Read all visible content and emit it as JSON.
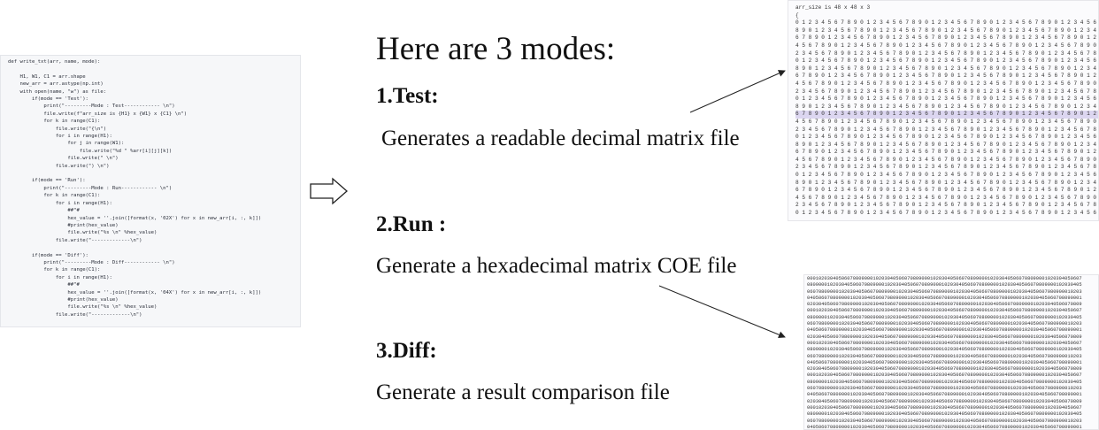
{
  "code": {
    "blocks": [
      [
        "def write_txt(arr, name, mode):"
      ],
      [
        "    H1, W1, C1 = arr.shape",
        "    new_arr = arr.astype(np.int)",
        "    with open(name, \"w\") as file:",
        "        if(mode == 'Test'):",
        "            print(\"---------Mode : Test------------ \\n\")",
        "            file.write(f\"arr_size is {H1} x {W1} x {C1} \\n\")",
        "            for k in range(C1):",
        "                file.write(\"{\\n\")",
        "                for i in range(H1):",
        "                    for j in range(W1):",
        "                        file.write(\"%d \" %arr[i][j][k])",
        "                    file.write(\" \\n\")",
        "                file.write(\") \\n\")"
      ],
      [
        "        if(mode == 'Run'):",
        "            print(\"---------Mode : Run------------ \\n\")",
        "            for k in range(C1):",
        "                for i in range(H1):",
        "                    ##\"#",
        "                    hex_value = ''.join([format(x, '02X') for x in new_arr[i, :, k]])",
        "                    #print(hex_value)",
        "                    file.write(\"%s \\n\" %hex_value)",
        "                file.write(\"-------------\\n\")"
      ],
      [
        "        if(mode == 'Diff'):",
        "            print(\"---------Mode : Diff------------ \\n\")",
        "            for k in range(C1):",
        "                for i in range(H1):",
        "                    ##\"#",
        "                    hex_value = ''.join([format(x, '04X') for x in new_arr[i, :, k]])",
        "                    #print(hex_value)",
        "                    file.write(\"%s \\n\" %hex_value)",
        "                file.write(\"-------------\\n\")"
      ]
    ]
  },
  "slide": {
    "title": "Here are 3 modes:",
    "modes": [
      {
        "heading": "1.Test:",
        "description": "Generates a readable decimal matrix file"
      },
      {
        "heading": "2.Run :",
        "description": "Generate a hexadecimal matrix COE file"
      },
      {
        "heading": "3.Diff:",
        "description": "Generate a result comparison file"
      }
    ]
  },
  "decimal_file": {
    "header": "arr_size is 48 x 48 x 3",
    "brace": "{",
    "rows": [
      "0 1 2 3 4 5 6 7 8 9 0 1 2 3 4 5 6 7 8 9 0 1 2 3 4 5 6 7 8 9 0 1 2 3 4 5 6 7 8 9 0 1 2 3 4 5 6 7",
      "8 9 0 1 2 3 4 5 6 7 8 9 0 1 2 3 4 5 6 7 8 9 0 1 2 3 4 5 6 7 8 9 0 1 2 3 4 5 6 7 8 9 0 1 2 3 4 5",
      "6 7 8 9 0 1 2 3 4 5 6 7 8 9 0 1 2 3 4 5 6 7 8 9 0 1 2 3 4 5 6 7 8 9 0 1 2 3 4 5 6 7 8 9 0 1 2 3",
      "4 5 6 7 8 9 0 1 2 3 4 5 6 7 8 9 0 1 2 3 4 5 6 7 8 9 0 1 2 3 4 5 6 7 8 9 0 1 2 3 4 5 6 7 8 9 0 1",
      "2 3 4 5 6 7 8 9 0 1 2 3 4 5 6 7 8 9 0 1 2 3 4 5 6 7 8 9 0 1 2 3 4 5 6 7 8 9 0 1 2 3 4 5 6 7 8 9",
      "0 1 2 3 4 5 6 7 8 9 0 1 2 3 4 5 6 7 8 9 0 1 2 3 4 5 6 7 8 9 0 1 2 3 4 5 6 7 8 9 0 1 2 3 4 5 6 7",
      "8 9 0 1 2 3 4 5 6 7 8 9 0 1 2 3 4 5 6 7 8 9 0 1 2 3 4 5 6 7 8 9 0 1 2 3 4 5 6 7 8 9 0 1 2 3 4 5",
      "6 7 8 9 0 1 2 3 4 5 6 7 8 9 0 1 2 3 4 5 6 7 8 9 0 1 2 3 4 5 6 7 8 9 0 1 2 3 4 5 6 7 8 9 0 1 2 3",
      "4 5 6 7 8 9 0 1 2 3 4 5 6 7 8 9 0 1 2 3 4 5 6 7 8 9 0 1 2 3 4 5 6 7 8 9 0 1 2 3 4 5 6 7 8 9 0 1",
      "2 3 4 5 6 7 8 9 0 1 2 3 4 5 6 7 8 9 0 1 2 3 4 5 6 7 8 9 0 1 2 3 4 5 6 7 8 9 0 1 2 3 4 5 6 7 8 9",
      "0 1 2 3 4 5 6 7 8 9 0 1 2 3 4 5 6 7 8 9 0 1 2 3 4 5 6 7 8 9 0 1 2 3 4 5 6 7 8 9 0 1 2 3 4 5 6 7",
      "8 9 0 1 2 3 4 5 6 7 8 9 0 1 2 3 4 5 6 7 8 9 0 1 2 3 4 5 6 7 8 9 0 1 2 3 4 5 6 7 8 9 0 1 2 3 4 5",
      "6 7 8 9 0 1 2 3 4 5 6 7 8 9 0 1 2 3 4 5 6 7 8 9 0 1 2 3 4 5 6 7 8 9 0 1 2 3 4 5 6 7 8 9 0 1 2 3",
      "4 5 6 7 8 9 0 1 2 3 4 5 6 7 8 9 0 1 2 3 4 5 6 7 8 9 0 1 2 3 4 5 6 7 8 9 0 1 2 3 4 5 6 7 8 9 0 1",
      "2 3 4 5 6 7 8 9 0 1 2 3 4 5 6 7 8 9 0 1 2 3 4 5 6 7 8 9 0 1 2 3 4 5 6 7 8 9 0 1 2 3 4 5 6 7 8 9",
      "0 1 2 3 4 5 6 7 8 9 0 1 2 3 4 5 6 7 8 9 0 1 2 3 4 5 6 7 8 9 0 1 2 3 4 5 6 7 8 9 0 1 2 3 4 5 6 7",
      "8 9 0 1 2 3 4 5 6 7 8 9 0 1 2 3 4 5 6 7 8 9 0 1 2 3 4 5 6 7 8 9 0 1 2 3 4 5 6 7 8 9 0 1 2 3 4 5",
      "6 7 8 9 0 1 2 3 4 5 6 7 8 9 0 1 2 3 4 5 6 7 8 9 0 1 2 3 4 5 6 7 8 9 0 1 2 3 4 5 6 7 8 9 0 1 2 3",
      "4 5 6 7 8 9 0 1 2 3 4 5 6 7 8 9 0 1 2 3 4 5 6 7 8 9 0 1 2 3 4 5 6 7 8 9 0 1 2 3 4 5 6 7 8 9 0 1",
      "2 3 4 5 6 7 8 9 0 1 2 3 4 5 6 7 8 9 0 1 2 3 4 5 6 7 8 9 0 1 2 3 4 5 6 7 8 9 0 1 2 3 4 5 6 7 8 9",
      "0 1 2 3 4 5 6 7 8 9 0 1 2 3 4 5 6 7 8 9 0 1 2 3 4 5 6 7 8 9 0 1 2 3 4 5 6 7 8 9 0 1 2 3 4 5 6 7",
      "8 9 0 1 2 3 4 5 6 7 8 9 0 1 2 3 4 5 6 7 8 9 0 1 2 3 4 5 6 7 8 9 0 1 2 3 4 5 6 7 8 9 0 1 2 3 4 5",
      "6 7 8 9 0 1 2 3 4 5 6 7 8 9 0 1 2 3 4 5 6 7 8 9 0 1 2 3 4 5 6 7 8 9 0 1 2 3 4 5 6 7 8 9 0 1 2 3",
      "4 5 6 7 8 9 0 1 2 3 4 5 6 7 8 9 0 1 2 3 4 5 6 7 8 9 0 1 2 3 4 5 6 7 8 9 0 1 2 3 4 5 6 7 8 9 0 1",
      "2 3 4 5 6 7 8 9 0 1 2 3 4 5 6 7 8 9 0 1 2 3 4 5 6 7 8 9 0 1 2 3 4 5 6 7 8 9 0 1 2 3 4 5 6 7 8 9",
      "0 1 2 3 4 5 6 7 8 9 0 1 2 3 4 5 6 7 8 9 0 1 2 3 4 5 6 7 8 9 0 1 2 3 4 5 6 7 8 9 0 1 2 3 4 5 6 7"
    ]
  },
  "hex_file": {
    "rows": [
      "000102030405060708090001020304050607080900010203040506070809000102030405060708090001020304050607",
      "080900010203040506070809000102030405060708090001020304050607080900010203040506070809000102030405",
      "060708090001020304050607080900010203040506070809000102030405060708090001020304050607080900010203",
      "040506070809000102030405060708090001020304050607080900010203040506070809000102030405060708090001",
      "020304050607080900010203040506070809000102030405060708090001020304050607080900010203040506070809",
      "000102030405060708090001020304050607080900010203040506070809000102030405060708090001020304050607",
      "080900010203040506070809000102030405060708090001020304050607080900010203040506070809000102030405",
      "060708090001020304050607080900010203040506070809000102030405060708090001020304050607080900010203",
      "040506070809000102030405060708090001020304050607080900010203040506070809000102030405060708090001",
      "020304050607080900010203040506070809000102030405060708090001020304050607080900010203040506070809",
      "000102030405060708090001020304050607080900010203040506070809000102030405060708090001020304050607",
      "080900010203040506070809000102030405060708090001020304050607080900010203040506070809000102030405",
      "060708090001020304050607080900010203040506070809000102030405060708090001020304050607080900010203",
      "040506070809000102030405060708090001020304050607080900010203040506070809000102030405060708090001",
      "020304050607080900010203040506070809000102030405060708090001020304050607080900010203040506070809",
      "000102030405060708090001020304050607080900010203040506070809000102030405060708090001020304050607",
      "080900010203040506070809000102030405060708090001020304050607080900010203040506070809000102030405",
      "060708090001020304050607080900010203040506070809000102030405060708090001020304050607080900010203",
      "040506070809000102030405060708090001020304050607080900010203040506070809000102030405060708090001",
      "020304050607080900010203040506070809000102030405060708090001020304050607080900010203040506070809",
      "000102030405060708090001020304050607080900010203040506070809000102030405060708090001020304050607",
      "080900010203040506070809000102030405060708090001020304050607080900010203040506070809000102030405",
      "060708090001020304050607080900010203040506070809000102030405060708090001020304050607080900010203",
      "040506070809000102030405060708090001020304050607080900010203040506070809000102030405060708090001"
    ]
  }
}
